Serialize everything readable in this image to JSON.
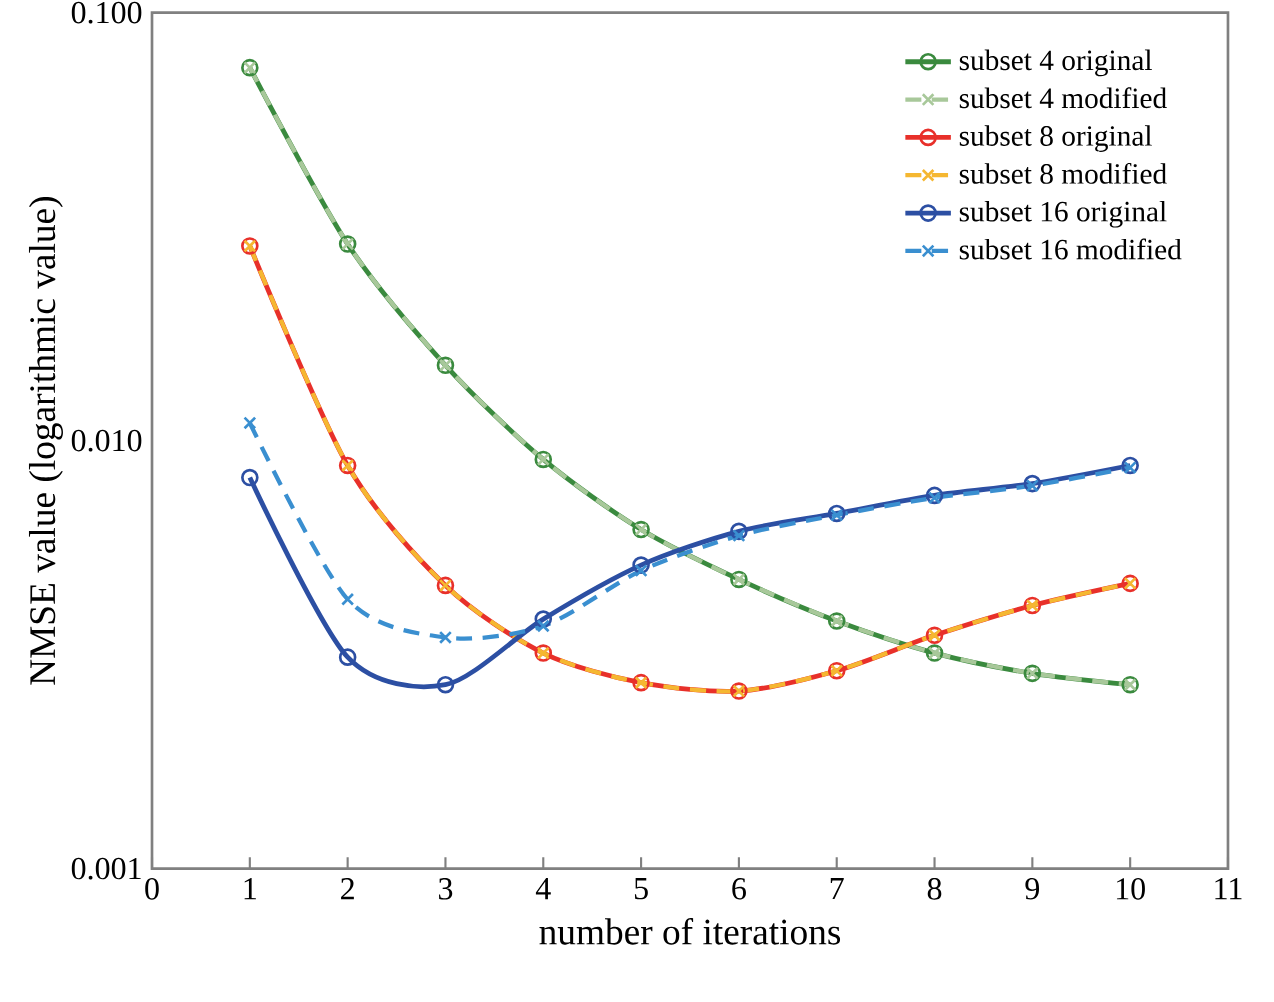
{
  "chart_data": {
    "type": "line",
    "xlabel": "number of iterations",
    "ylabel": "NMSE value (logarithmic value)",
    "x": [
      1,
      2,
      3,
      4,
      5,
      6,
      7,
      8,
      9,
      10
    ],
    "series": [
      {
        "name": "subset 4 original",
        "color": "#3a8a3e",
        "marker": "circle",
        "line_style": "solid",
        "values": [
          0.0744,
          0.0288,
          0.015,
          0.00904,
          0.0062,
          0.00474,
          0.00379,
          0.00319,
          0.00286,
          0.00269
        ]
      },
      {
        "name": "subset 4 modified",
        "color": "#a8c89a",
        "marker": "cross",
        "line_style": "dashed",
        "values": [
          0.0744,
          0.0288,
          0.015,
          0.00904,
          0.0062,
          0.00474,
          0.00379,
          0.00319,
          0.00286,
          0.00269
        ]
      },
      {
        "name": "subset 8 original",
        "color": "#e8302a",
        "marker": "circle",
        "line_style": "solid",
        "values": [
          0.0285,
          0.00875,
          0.00459,
          0.00319,
          0.00272,
          0.0026,
          0.0029,
          0.00351,
          0.00412,
          0.00464
        ]
      },
      {
        "name": "subset 8 modified",
        "color": "#f5b731",
        "marker": "cross",
        "line_style": "dashed",
        "values": [
          0.0285,
          0.00875,
          0.00459,
          0.00319,
          0.00272,
          0.0026,
          0.0029,
          0.00351,
          0.00412,
          0.00464
        ]
      },
      {
        "name": "subset 16 original",
        "color": "#2c4fa3",
        "marker": "circle",
        "line_style": "solid",
        "values": [
          0.0082,
          0.00312,
          0.00269,
          0.00383,
          0.00512,
          0.00614,
          0.00676,
          0.00745,
          0.00794,
          0.00875
        ]
      },
      {
        "name": "subset 16 modified",
        "color": "#3a8fd0",
        "marker": "cross",
        "line_style": "dashed",
        "values": [
          0.011,
          0.00426,
          0.00347,
          0.00369,
          0.00497,
          0.006,
          0.0067,
          0.00735,
          0.00785,
          0.00865
        ]
      }
    ],
    "log": "y",
    "grid": false,
    "legend": "top right",
    "xlim": [
      0,
      11
    ],
    "xticks": [
      0,
      1,
      2,
      3,
      4,
      5,
      6,
      7,
      8,
      9,
      10,
      11
    ],
    "ylim": [
      0.001,
      0.1
    ],
    "yticks": [
      {
        "value": 0.001,
        "label": "0.001"
      },
      {
        "value": 0.01,
        "label": "0.010"
      },
      {
        "value": 0.1,
        "label": "0.100"
      }
    ]
  }
}
